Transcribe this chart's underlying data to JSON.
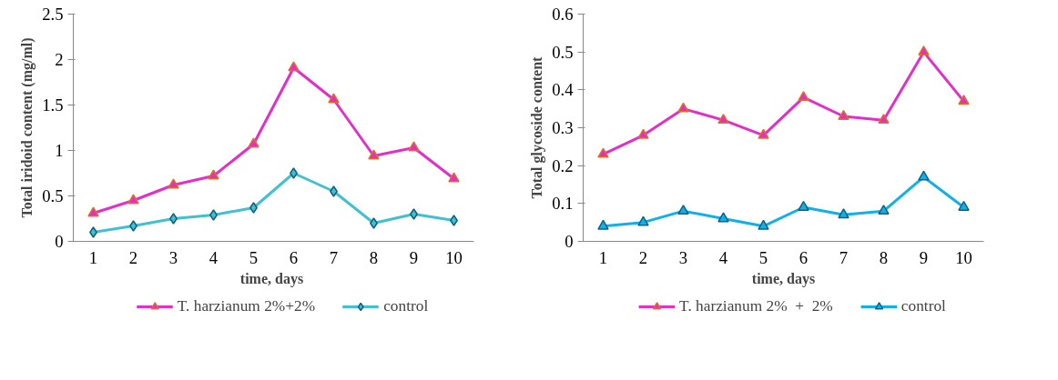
{
  "chart_data": [
    {
      "type": "line",
      "xlabel": "time,  days",
      "ylabel": "Total iridoid content (mg/ml)",
      "categories": [
        "1",
        "2",
        "3",
        "4",
        "5",
        "6",
        "7",
        "8",
        "9",
        "10"
      ],
      "ylim": [
        0,
        2.5
      ],
      "yticks": [
        0,
        0.5,
        1,
        1.5,
        2,
        2.5
      ],
      "grid": false,
      "legend": "bottom",
      "series": [
        {
          "name": "T. harzianum 2%+2%",
          "color": "#e030c8",
          "marker": "triangle",
          "values": [
            0.31,
            0.45,
            0.62,
            0.72,
            1.07,
            1.91,
            1.56,
            0.94,
            1.03,
            0.69
          ]
        },
        {
          "name": "control",
          "color": "#40c0d0",
          "marker": "diamond",
          "values": [
            0.1,
            0.17,
            0.25,
            0.29,
            0.37,
            0.75,
            0.55,
            0.2,
            0.3,
            0.23
          ]
        }
      ]
    },
    {
      "type": "line",
      "xlabel": "time, days",
      "ylabel": "Total glycoside content",
      "categories": [
        "1",
        "2",
        "3",
        "4",
        "5",
        "6",
        "7",
        "8",
        "9",
        "10"
      ],
      "ylim": [
        0,
        0.6
      ],
      "yticks": [
        0,
        0.1,
        0.2,
        0.3,
        0.4,
        0.5,
        0.6
      ],
      "grid": false,
      "legend": "bottom",
      "series": [
        {
          "name": "T. harzianum 2%  +  2%",
          "color": "#e030c8",
          "marker": "triangle",
          "values": [
            0.23,
            0.28,
            0.35,
            0.32,
            0.28,
            0.38,
            0.33,
            0.32,
            0.5,
            0.37
          ]
        },
        {
          "name": "control",
          "color": "#10b0e8",
          "marker": "triangle",
          "values": [
            0.04,
            0.05,
            0.08,
            0.06,
            0.04,
            0.09,
            0.07,
            0.08,
            0.17,
            0.09
          ]
        }
      ]
    }
  ]
}
